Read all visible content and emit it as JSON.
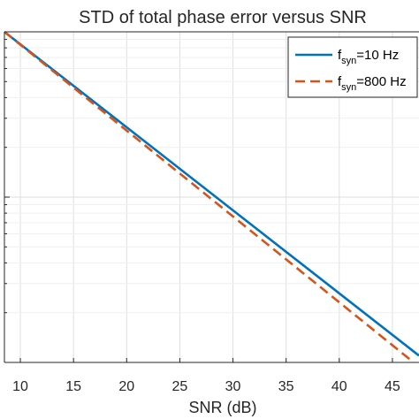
{
  "chart_data": {
    "type": "line",
    "title": "STD of total phase error versus SNR",
    "xlabel": "SNR (dB)",
    "ylabel": "",
    "xlim": [
      8.5,
      47.5
    ],
    "xticks": [
      10,
      15,
      20,
      25,
      30,
      35,
      40,
      45
    ],
    "yscale": "log",
    "ylim": [
      0.001,
      0.1
    ],
    "grid": true,
    "legend_placement": "top-right",
    "series": [
      {
        "name": "f_syn=10 Hz",
        "legend_main": "f",
        "legend_sub": "syn",
        "legend_rest": "=10 Hz",
        "color": "#0072bd",
        "style": "solid",
        "x": [
          8.5,
          47.5
        ],
        "y": [
          0.1,
          0.0011
        ]
      },
      {
        "name": "f_syn=800 Hz",
        "legend_main": "f",
        "legend_sub": "syn",
        "legend_rest": "=800 Hz",
        "color": "#d95319",
        "style": "dashed",
        "x": [
          8.5,
          47.0
        ],
        "y": [
          0.1,
          0.001
        ]
      }
    ]
  }
}
